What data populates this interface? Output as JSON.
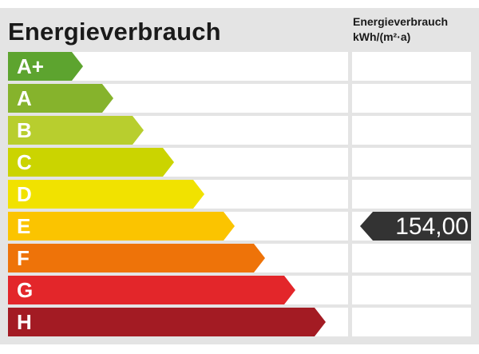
{
  "title": "Energieverbrauch",
  "column_header": {
    "line1": "Energieverbrauch",
    "line2": "kWh/(m²·a)"
  },
  "classes": [
    {
      "label": "A+",
      "color": "#5da42f"
    },
    {
      "label": "A",
      "color": "#86b32c"
    },
    {
      "label": "B",
      "color": "#b8ce2e"
    },
    {
      "label": "C",
      "color": "#cbd400"
    },
    {
      "label": "D",
      "color": "#f1e200"
    },
    {
      "label": "E",
      "color": "#fbc400"
    },
    {
      "label": "F",
      "color": "#ee7309"
    },
    {
      "label": "G",
      "color": "#e3262a"
    },
    {
      "label": "H",
      "color": "#a31b23"
    }
  ],
  "marker": {
    "class": "E",
    "value": "154,00",
    "color": "#333333"
  }
}
